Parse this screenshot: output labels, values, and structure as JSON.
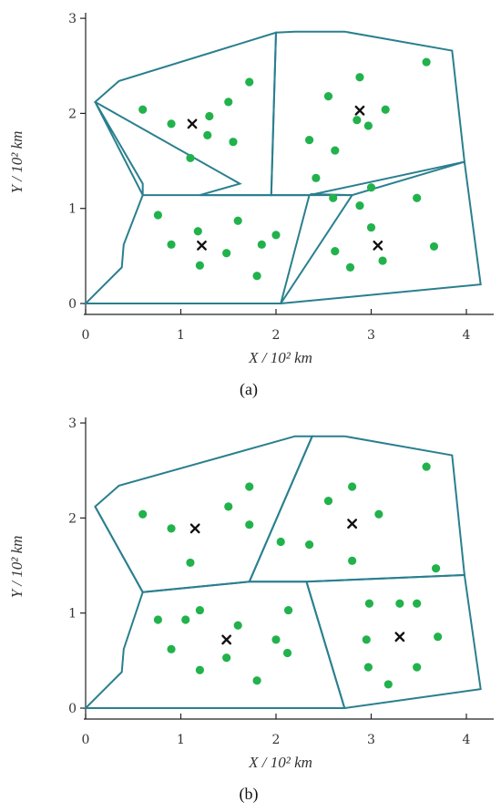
{
  "chart_data": [
    {
      "type": "scatter",
      "panel_label": "(a)",
      "panel_letter": "a",
      "xlabel": "X / 10² km",
      "ylabel": "Y / 10² km",
      "xlim": [
        0,
        4.3
      ],
      "ylim": [
        0,
        3
      ],
      "xticks": [
        0,
        1,
        2,
        3,
        4
      ],
      "yticks": [
        0,
        1,
        2,
        3
      ],
      "colors": {
        "points": "#22b24c",
        "regions": "#2a7f8f",
        "centers": "#111111"
      },
      "regions": [
        [
          [
            0.1,
            2.12
          ],
          [
            0.35,
            2.34
          ],
          [
            2.0,
            2.85
          ],
          [
            1.95,
            1.14
          ],
          [
            1.2,
            1.14
          ],
          [
            1.62,
            1.26
          ]
        ],
        [
          [
            2.0,
            2.85
          ],
          [
            2.2,
            2.86
          ],
          [
            2.72,
            2.86
          ],
          [
            3.85,
            2.66
          ],
          [
            3.98,
            1.49
          ],
          [
            2.8,
            1.14
          ],
          [
            1.95,
            1.14
          ]
        ],
        [
          [
            1.95,
            1.14
          ],
          [
            2.35,
            1.14
          ],
          [
            2.37,
            1.15
          ],
          [
            2.8,
            1.14
          ],
          [
            2.05,
            0.0
          ],
          [
            0.0,
            0.0
          ],
          [
            0.38,
            0.38
          ],
          [
            0.4,
            0.62
          ],
          [
            0.6,
            1.14
          ],
          [
            1.2,
            1.14
          ]
        ],
        [
          [
            2.35,
            1.14
          ],
          [
            3.98,
            1.49
          ],
          [
            4.15,
            0.2
          ],
          [
            2.05,
            0.0
          ]
        ],
        [
          [
            0.1,
            2.12
          ],
          [
            0.6,
            1.26
          ],
          [
            0.6,
            1.14
          ]
        ]
      ],
      "points": [
        [
          0.6,
          2.04
        ],
        [
          0.9,
          1.89
        ],
        [
          1.3,
          1.97
        ],
        [
          1.5,
          2.12
        ],
        [
          1.72,
          2.33
        ],
        [
          1.28,
          1.77
        ],
        [
          1.55,
          1.7
        ],
        [
          1.1,
          1.53
        ],
        [
          2.55,
          2.18
        ],
        [
          2.88,
          2.38
        ],
        [
          3.15,
          2.04
        ],
        [
          3.58,
          2.54
        ],
        [
          2.85,
          1.93
        ],
        [
          2.97,
          1.87
        ],
        [
          2.35,
          1.72
        ],
        [
          2.62,
          1.61
        ],
        [
          2.42,
          1.32
        ],
        [
          0.76,
          0.93
        ],
        [
          0.9,
          0.62
        ],
        [
          1.18,
          0.76
        ],
        [
          1.2,
          0.4
        ],
        [
          1.48,
          0.53
        ],
        [
          1.6,
          0.87
        ],
        [
          1.85,
          0.62
        ],
        [
          2.0,
          0.72
        ],
        [
          1.8,
          0.29
        ],
        [
          2.6,
          1.11
        ],
        [
          3.0,
          1.22
        ],
        [
          3.48,
          1.11
        ],
        [
          2.88,
          1.03
        ],
        [
          3.0,
          0.8
        ],
        [
          2.62,
          0.55
        ],
        [
          2.78,
          0.38
        ],
        [
          3.12,
          0.45
        ],
        [
          3.66,
          0.6
        ]
      ],
      "centers": [
        [
          1.12,
          1.89
        ],
        [
          2.88,
          2.03
        ],
        [
          1.22,
          0.61
        ],
        [
          3.07,
          0.61
        ]
      ]
    },
    {
      "type": "scatter",
      "panel_label": "(b)",
      "panel_letter": "b",
      "xlabel": "X / 10² km",
      "ylabel": "Y / 10² km",
      "xlim": [
        0,
        4.3
      ],
      "ylim": [
        0,
        3
      ],
      "xticks": [
        0,
        1,
        2,
        3,
        4
      ],
      "yticks": [
        0,
        1,
        2,
        3
      ],
      "colors": {
        "points": "#22b24c",
        "regions": "#2a7f8f",
        "centers": "#111111"
      },
      "regions": [
        [
          [
            0.1,
            2.12
          ],
          [
            0.35,
            2.34
          ],
          [
            2.2,
            2.86
          ],
          [
            2.38,
            2.86
          ],
          [
            1.72,
            1.33
          ],
          [
            0.6,
            1.22
          ]
        ],
        [
          [
            2.38,
            2.86
          ],
          [
            2.72,
            2.86
          ],
          [
            3.85,
            2.66
          ],
          [
            3.98,
            1.4
          ],
          [
            2.32,
            1.33
          ],
          [
            1.72,
            1.33
          ]
        ],
        [
          [
            0.6,
            1.22
          ],
          [
            1.72,
            1.33
          ],
          [
            2.32,
            1.33
          ],
          [
            2.72,
            0.0
          ],
          [
            0.0,
            0.0
          ],
          [
            0.38,
            0.38
          ],
          [
            0.4,
            0.62
          ]
        ],
        [
          [
            2.32,
            1.33
          ],
          [
            3.98,
            1.4
          ],
          [
            4.15,
            0.2
          ],
          [
            2.72,
            0.0
          ]
        ],
        [
          [
            0.1,
            2.12
          ],
          [
            0.6,
            1.22
          ]
        ]
      ],
      "points": [
        [
          0.6,
          2.04
        ],
        [
          0.9,
          1.89
        ],
        [
          1.1,
          1.53
        ],
        [
          1.5,
          2.12
        ],
        [
          1.72,
          2.33
        ],
        [
          1.72,
          1.93
        ],
        [
          2.55,
          2.18
        ],
        [
          2.8,
          2.33
        ],
        [
          3.08,
          2.04
        ],
        [
          3.58,
          2.54
        ],
        [
          2.05,
          1.75
        ],
        [
          2.35,
          1.72
        ],
        [
          2.8,
          1.55
        ],
        [
          3.68,
          1.47
        ],
        [
          0.76,
          0.93
        ],
        [
          1.05,
          0.93
        ],
        [
          1.2,
          1.03
        ],
        [
          0.9,
          0.62
        ],
        [
          1.2,
          0.4
        ],
        [
          1.48,
          0.53
        ],
        [
          1.6,
          0.87
        ],
        [
          2.0,
          0.72
        ],
        [
          2.12,
          0.58
        ],
        [
          2.13,
          1.03
        ],
        [
          1.8,
          0.29
        ],
        [
          2.98,
          1.1
        ],
        [
          3.3,
          1.1
        ],
        [
          3.48,
          1.1
        ],
        [
          2.95,
          0.72
        ],
        [
          3.7,
          0.75
        ],
        [
          2.97,
          0.43
        ],
        [
          3.48,
          0.43
        ],
        [
          3.18,
          0.25
        ]
      ],
      "centers": [
        [
          1.15,
          1.89
        ],
        [
          2.8,
          1.94
        ],
        [
          1.48,
          0.72
        ],
        [
          3.3,
          0.75
        ]
      ]
    }
  ]
}
